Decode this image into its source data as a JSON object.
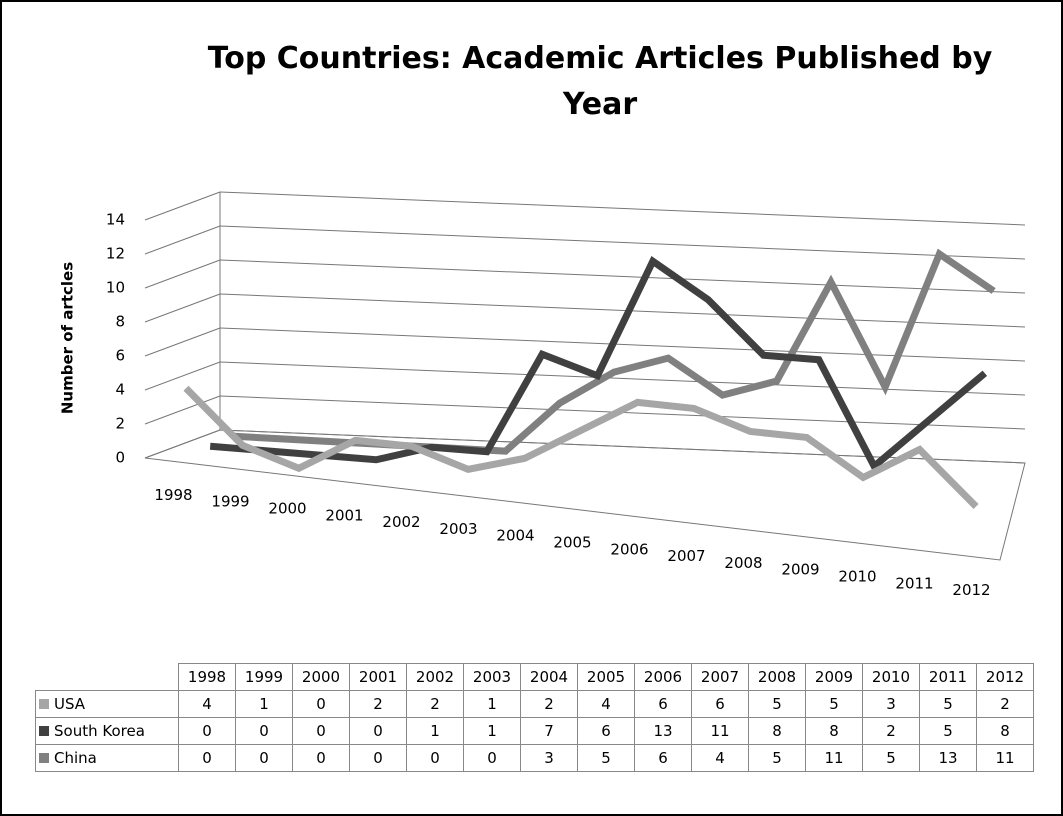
{
  "chart_data": {
    "type": "line3d",
    "title": "Top Countries: Academic Articles Published by Year",
    "ylabel": "Number of artcles",
    "categories": [
      "1998",
      "1999",
      "2000",
      "2001",
      "2002",
      "2003",
      "2004",
      "2005",
      "2006",
      "2007",
      "2008",
      "2009",
      "2010",
      "2011",
      "2012"
    ],
    "series": [
      {
        "name": "USA",
        "color": "#a6a6a6",
        "values": [
          4,
          1,
          0,
          2,
          2,
          1,
          2,
          4,
          6,
          6,
          5,
          5,
          3,
          5,
          2
        ]
      },
      {
        "name": "South Korea",
        "color": "#404040",
        "values": [
          0,
          0,
          0,
          0,
          1,
          1,
          7,
          6,
          13,
          11,
          8,
          8,
          2,
          5,
          8
        ]
      },
      {
        "name": "China",
        "color": "#808080",
        "values": [
          0,
          0,
          0,
          0,
          0,
          0,
          3,
          5,
          6,
          4,
          5,
          11,
          5,
          13,
          11
        ]
      }
    ],
    "ylim": [
      0,
      14
    ],
    "yticks": [
      0,
      2,
      4,
      6,
      8,
      10,
      12,
      14
    ],
    "grid": true
  }
}
